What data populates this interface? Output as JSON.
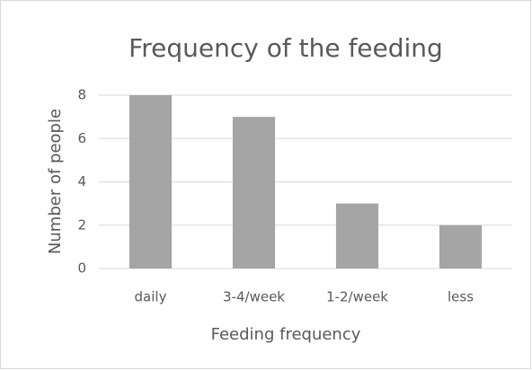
{
  "chart_data": {
    "type": "bar",
    "title": "Frequency of the feeding",
    "x_label": "Feeding frequency",
    "y_label": "Number of people",
    "categories": [
      "daily",
      "3-4/week",
      "1-2/week",
      "less"
    ],
    "values": [
      8,
      7,
      3,
      2
    ],
    "color": "#a5a5a5",
    "ylim": [
      0,
      8
    ],
    "yticks": [
      0,
      2,
      4,
      6,
      8
    ],
    "grid": true
  }
}
